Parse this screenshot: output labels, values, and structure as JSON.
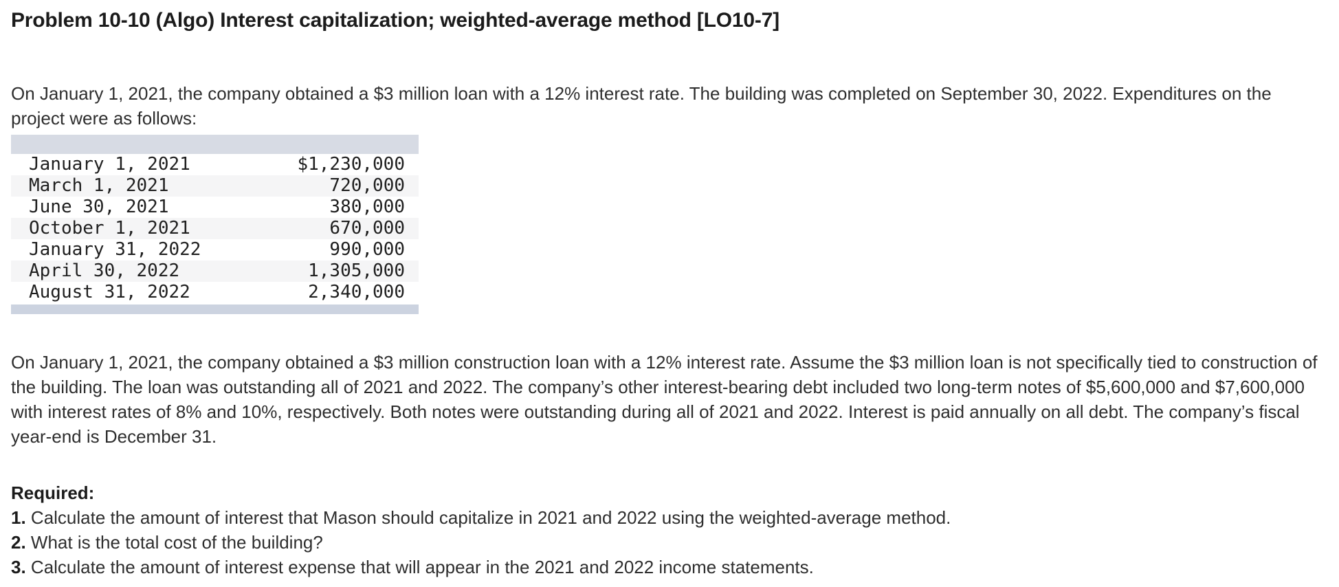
{
  "page": {
    "title": "Problem 10-10 (Algo) Interest capitalization; weighted-average method [LO10-7]"
  },
  "intro": {
    "text": "On January 1, 2021, the company obtained a $3 million loan with a 12% interest rate. The building was completed on September 30, 2022. Expenditures on the project were as follows:"
  },
  "expenditures": {
    "rows": [
      {
        "date": "January 1, 2021",
        "amount": "$1,230,000"
      },
      {
        "date": "March 1, 2021",
        "amount": "720,000"
      },
      {
        "date": "June 30, 2021",
        "amount": "380,000"
      },
      {
        "date": "October 1, 2021",
        "amount": "670,000"
      },
      {
        "date": "January 31, 2022",
        "amount": "990,000"
      },
      {
        "date": "April 30, 2022",
        "amount": "1,305,000"
      },
      {
        "date": "August 31, 2022",
        "amount": "2,340,000"
      }
    ]
  },
  "details": {
    "text": "On January 1, 2021, the company obtained a $3 million construction loan with a 12% interest rate. Assume the $3 million loan is not specifically tied to construction of the building. The loan was outstanding all of 2021 and 2022. The company’s other interest-bearing debt included two long-term notes of $5,600,000 and $7,600,000 with interest rates of 8% and 10%, respectively. Both notes were outstanding during all of 2021 and 2022. Interest is paid annually on all debt. The company’s fiscal year-end is December 31."
  },
  "required": {
    "label": "Required:",
    "items": [
      {
        "number": "1.",
        "text": "Calculate the amount of interest that Mason should capitalize in 2021 and 2022 using the weighted-average method."
      },
      {
        "number": "2.",
        "text": "What is the total cost of the building?"
      },
      {
        "number": "3.",
        "text": "Calculate the amount of interest expense that will appear in the 2021 and 2022 income statements."
      }
    ]
  },
  "colors": {
    "table_header_bar": "#d7dbe4",
    "table_footer_bar": "#ccd3e0",
    "row_alternate": "#f5f5f6",
    "body_text": "#2e2e2e"
  }
}
